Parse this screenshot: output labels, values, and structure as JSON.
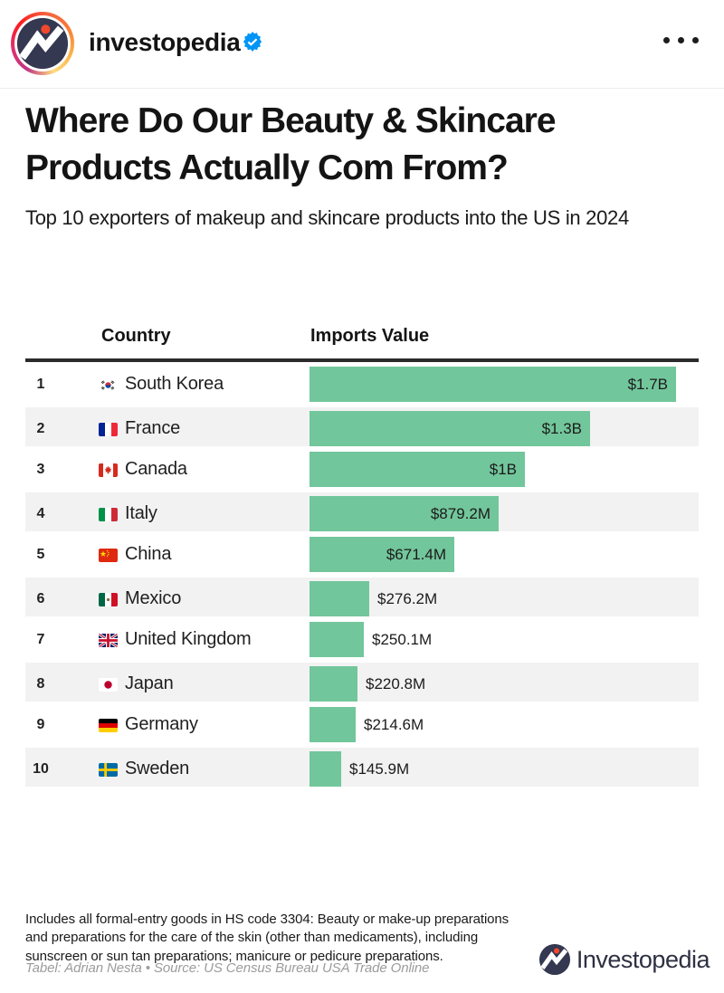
{
  "post_header": {
    "username": "investopedia",
    "verified_badge": "verified",
    "more_options": "more options"
  },
  "chart_data": {
    "type": "bar",
    "orientation": "horizontal",
    "title": "Where Do Our Beauty & Skincare Products Actually Com From?",
    "subtitle": "Top 10 exporters of makeup and skincare products into the US in 2024",
    "columns": [
      "Country",
      "Imports Value"
    ],
    "bar_color": "#72c69b",
    "value_axis_max_musd": 1700,
    "rows": [
      {
        "rank": "1",
        "country": "South Korea",
        "flag": "south-korea",
        "value_label": "$1.7B",
        "value_musd": 1700
      },
      {
        "rank": "2",
        "country": "France",
        "flag": "france",
        "value_label": "$1.3B",
        "value_musd": 1300
      },
      {
        "rank": "3",
        "country": "Canada",
        "flag": "canada",
        "value_label": "$1B",
        "value_musd": 1000
      },
      {
        "rank": "4",
        "country": "Italy",
        "flag": "italy",
        "value_label": "$879.2M",
        "value_musd": 879.2
      },
      {
        "rank": "5",
        "country": "China",
        "flag": "china",
        "value_label": "$671.4M",
        "value_musd": 671.4
      },
      {
        "rank": "6",
        "country": "Mexico",
        "flag": "mexico",
        "value_label": "$276.2M",
        "value_musd": 276.2
      },
      {
        "rank": "7",
        "country": "United Kingdom",
        "flag": "united-kingdom",
        "value_label": "$250.1M",
        "value_musd": 250.1
      },
      {
        "rank": "8",
        "country": "Japan",
        "flag": "japan",
        "value_label": "$220.8M",
        "value_musd": 220.8
      },
      {
        "rank": "9",
        "country": "Germany",
        "flag": "germany",
        "value_label": "$214.6M",
        "value_musd": 214.6
      },
      {
        "rank": "10",
        "country": "Sweden",
        "flag": "sweden",
        "value_label": "$145.9M",
        "value_musd": 145.9
      }
    ]
  },
  "footer": {
    "note": "Includes all formal-entry goods in HS code 3304: Beauty or make-up preparations and preparations for the care of the skin (other than medicaments), including sunscreen or sun tan preparations; manicure or pedicure preparations.",
    "credit": "Tabel: Adrian Nesta • Source: US Census Bureau USA Trade Online",
    "brand": "Investopedia"
  }
}
